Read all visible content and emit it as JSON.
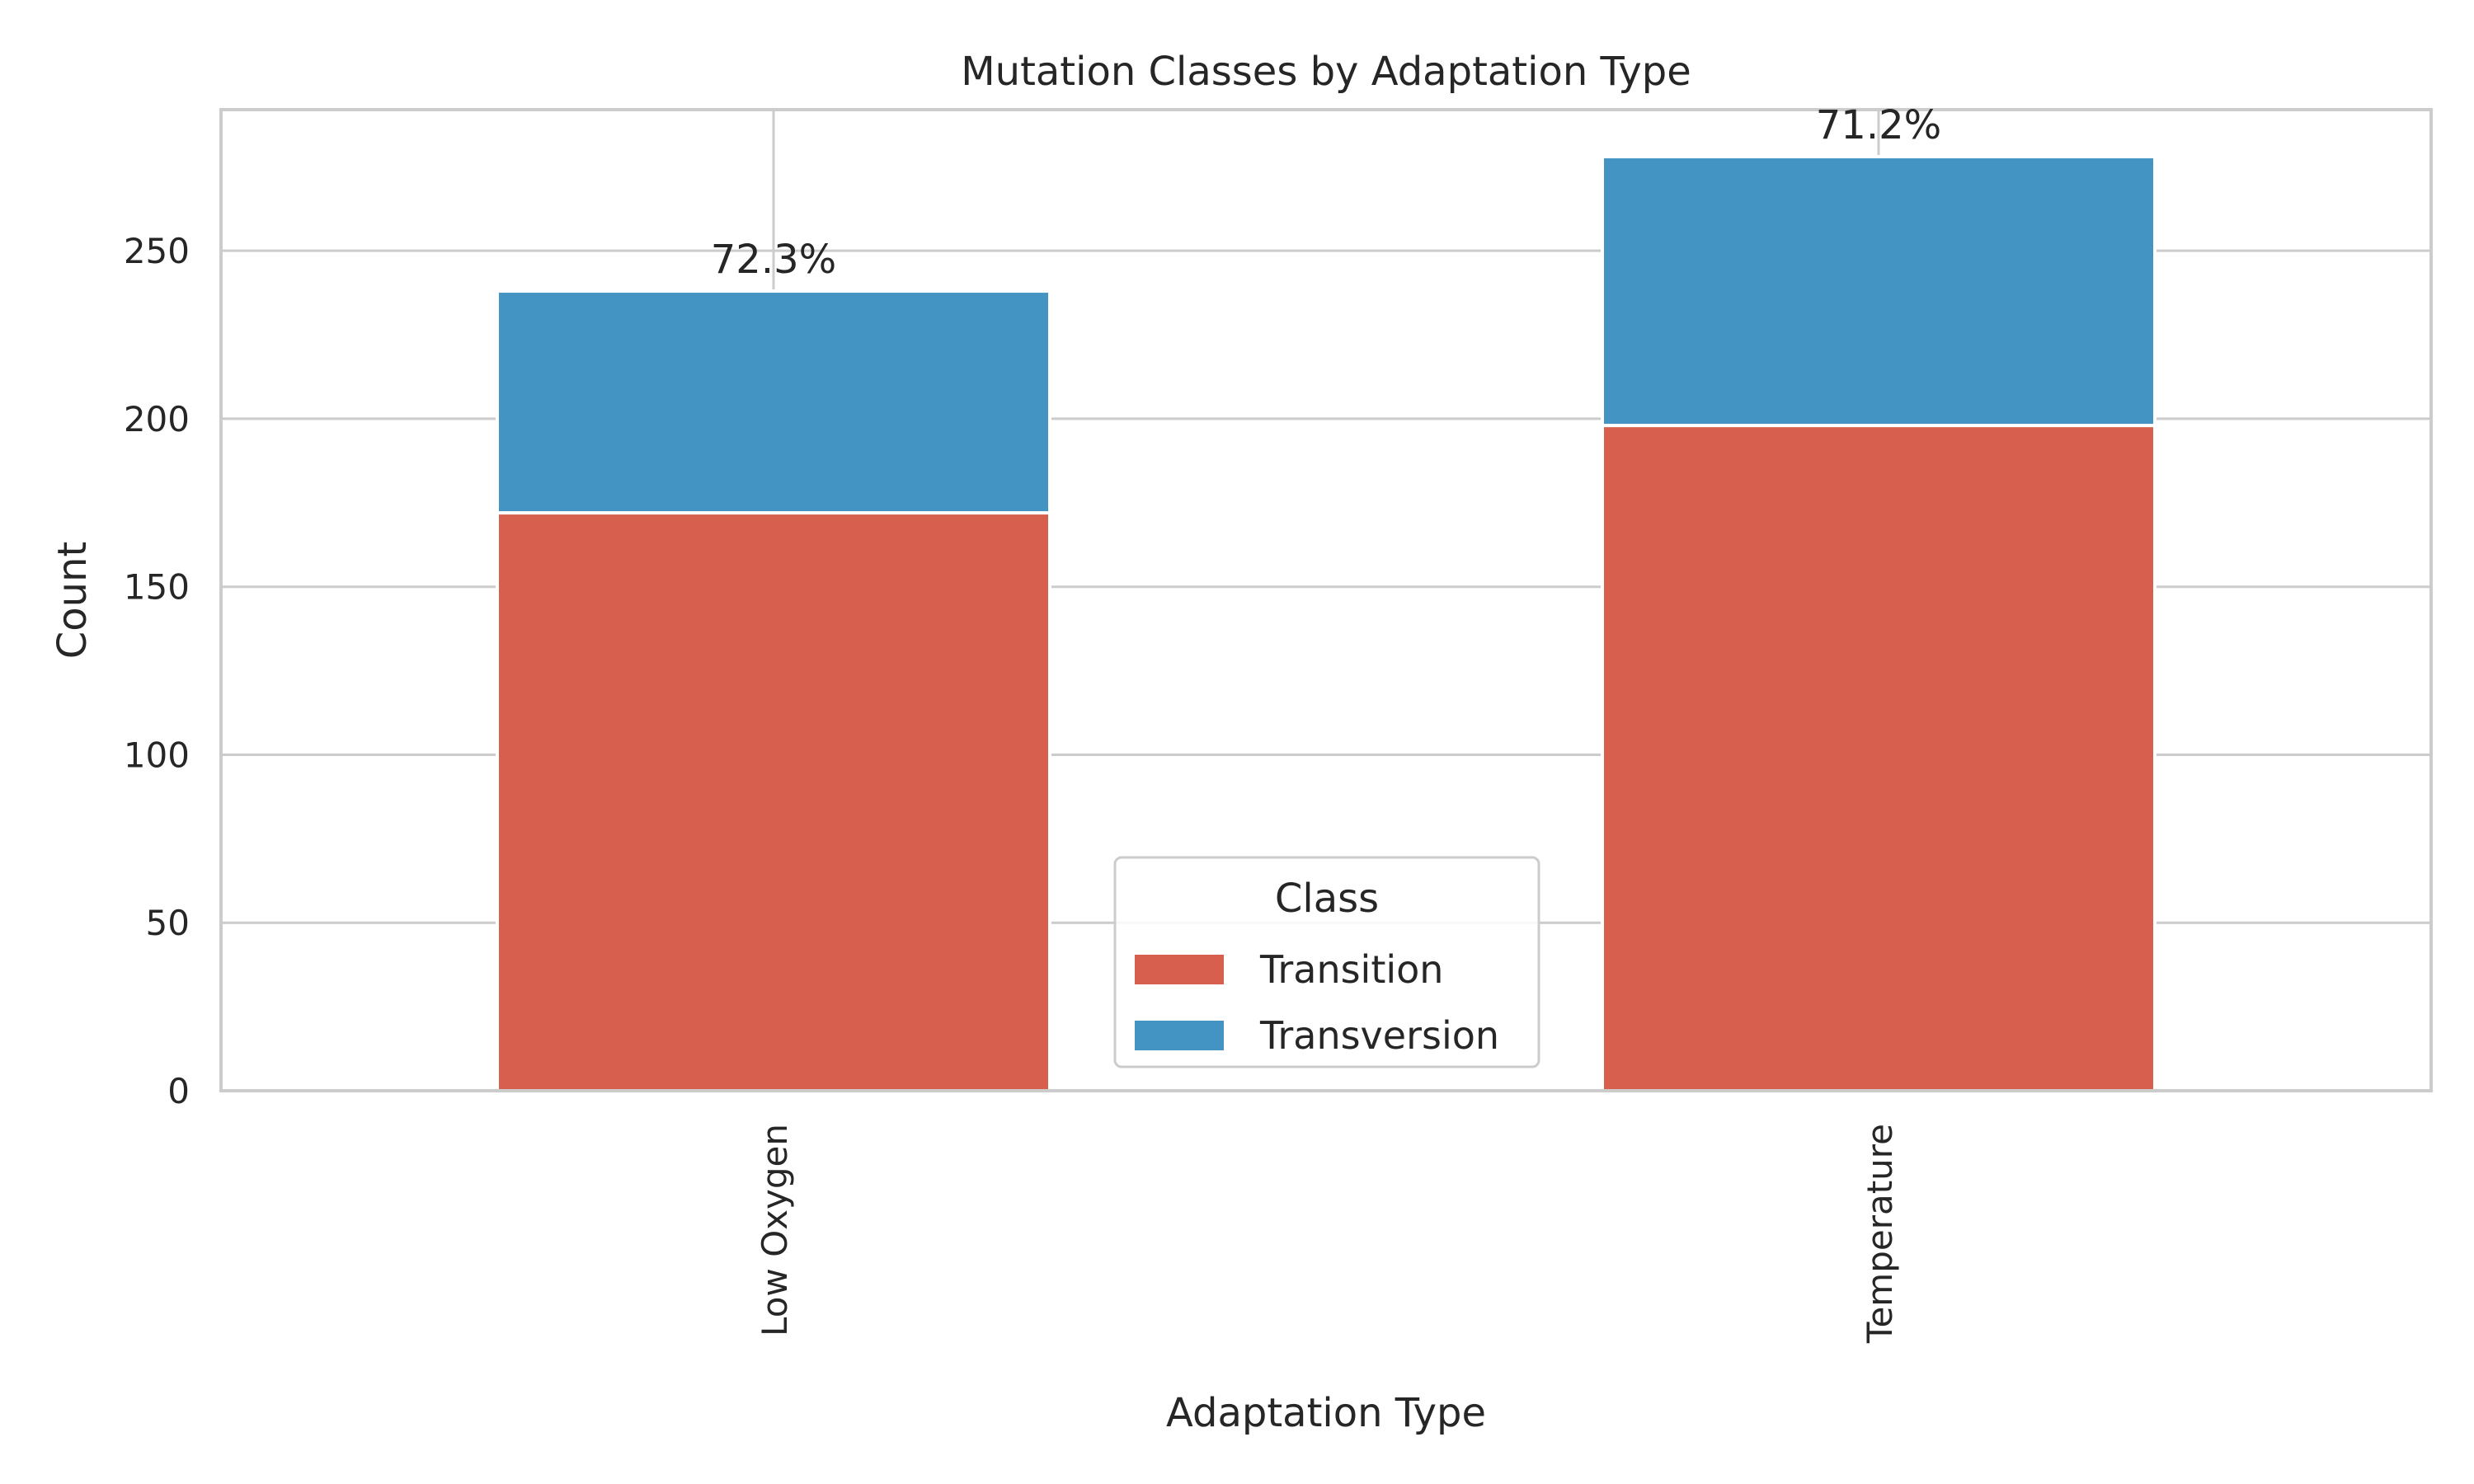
{
  "chart_data": {
    "type": "bar",
    "stacked": true,
    "title": "Mutation Classes by Adaptation Type",
    "xlabel": "Adaptation Type",
    "ylabel": "Count",
    "categories": [
      "Low Oxygen",
      "Temperature"
    ],
    "series": [
      {
        "name": "Transition",
        "values": [
          172,
          198
        ],
        "color": "#d6604d"
      },
      {
        "name": "Transversion",
        "values": [
          66,
          80
        ],
        "color": "#4393c3"
      }
    ],
    "bar_labels": [
      "72.3%",
      "71.2%"
    ],
    "ylim": [
      0,
      292
    ],
    "yticks": [
      0,
      50,
      100,
      150,
      200,
      250
    ],
    "grid": true,
    "legend": {
      "title": "Class",
      "placement": "lower center"
    }
  }
}
